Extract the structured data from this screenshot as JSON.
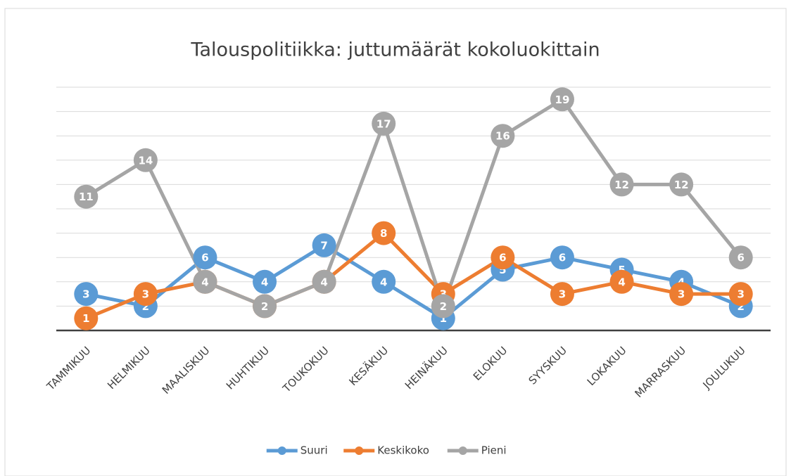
{
  "chart_data": {
    "type": "line",
    "title": "Talouspolitiikka: juttumäärät kokoluokittain",
    "categories": [
      "TAMMIKUU",
      "HELMIKUU",
      "MAALISKUU",
      "HUHTIKUU",
      "TOUKOKUU",
      "KESÄKUU",
      "HEINÄKUU",
      "ELOKUU",
      "SYYSKUU",
      "LOKAKUU",
      "MARRASKUU",
      "JOULUKUU"
    ],
    "series": [
      {
        "name": "Suuri",
        "color": "#5b9bd5",
        "values": [
          3,
          2,
          6,
          4,
          7,
          4,
          1,
          5,
          6,
          5,
          4,
          2
        ]
      },
      {
        "name": "Keskikoko",
        "color": "#ed7d31",
        "values": [
          1,
          3,
          4,
          2,
          4,
          8,
          3,
          6,
          3,
          4,
          3,
          3
        ]
      },
      {
        "name": "Pieni",
        "color": "#a5a5a5",
        "values": [
          11,
          14,
          4,
          2,
          4,
          17,
          2,
          16,
          19,
          12,
          12,
          6
        ]
      }
    ],
    "ylim": [
      0,
      20
    ],
    "yticks": [
      0,
      2,
      4,
      6,
      8,
      10,
      12,
      14,
      16,
      18,
      20
    ],
    "grid": true,
    "legend": "bottom"
  }
}
